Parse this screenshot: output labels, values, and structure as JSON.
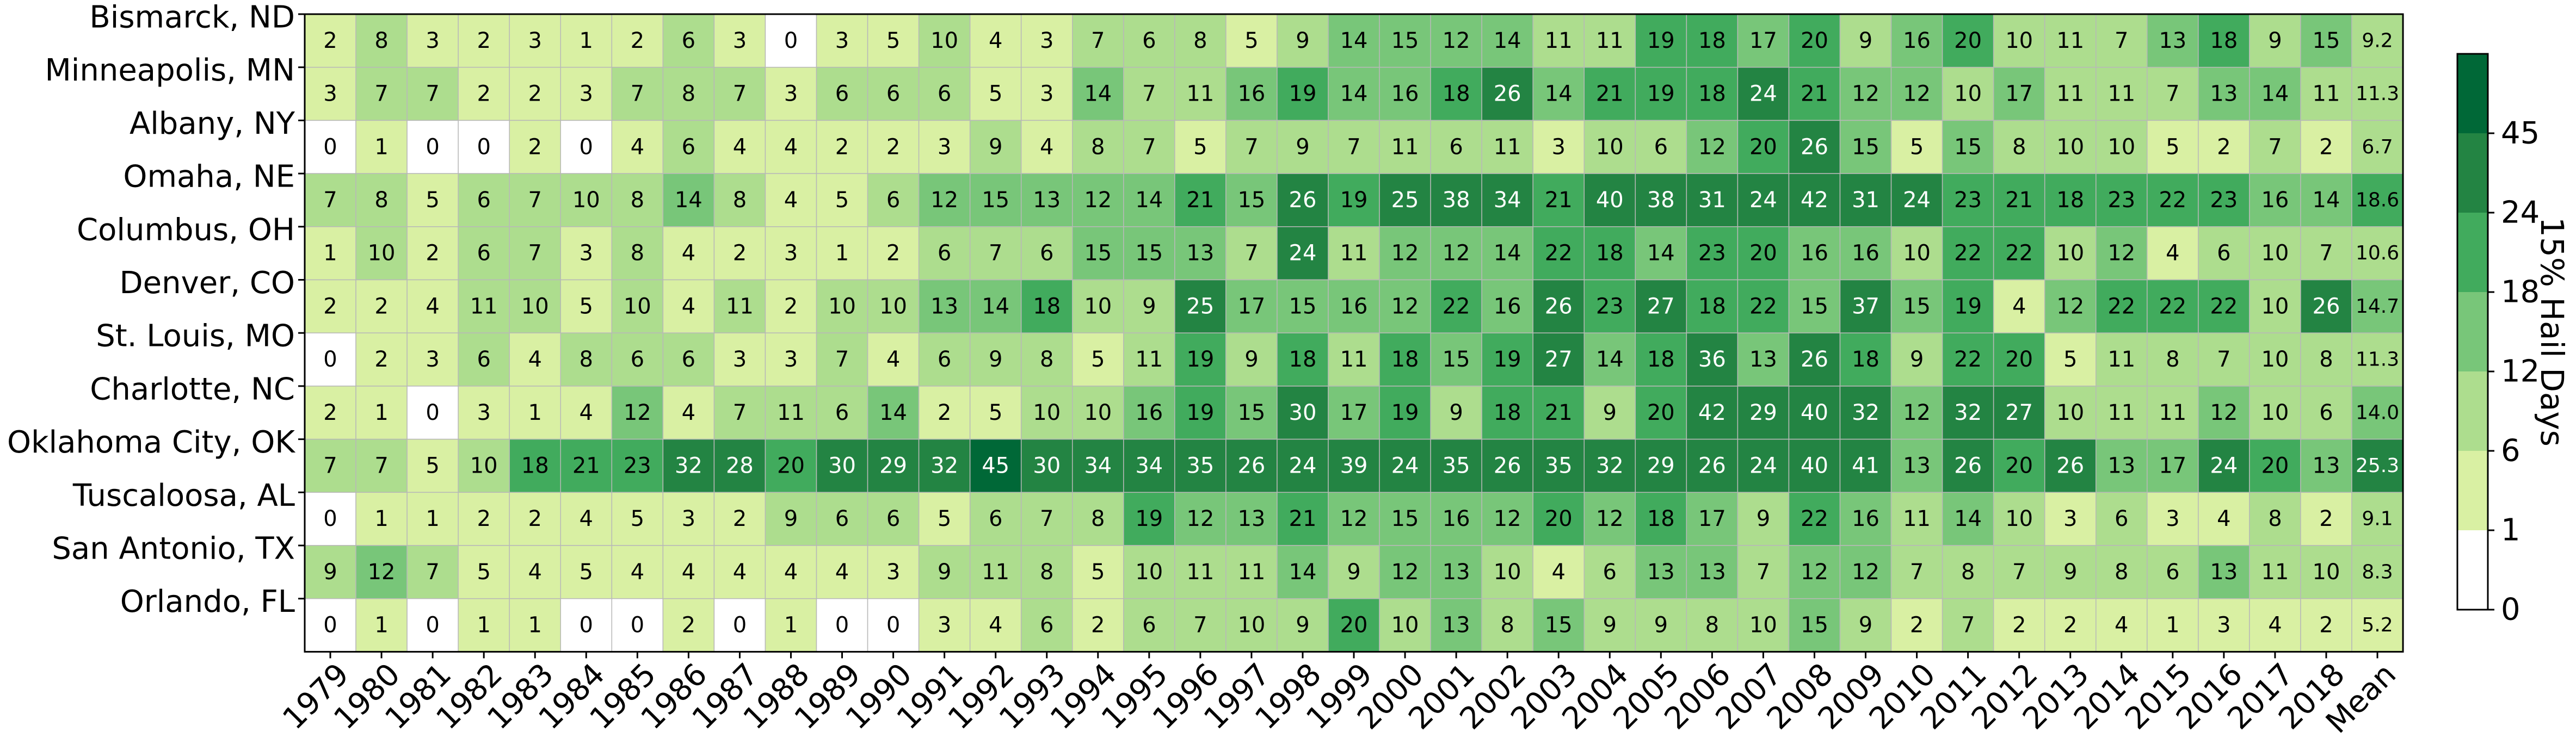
{
  "chart_data": {
    "type": "heatmap",
    "rows": [
      "Bismarck, ND",
      "Minneapolis, MN",
      "Albany, NY",
      "Omaha, NE",
      "Columbus, OH",
      "Denver, CO",
      "St. Louis, MO",
      "Charlotte, NC",
      "Oklahoma City, OK",
      "Tuscaloosa, AL",
      "San Antonio, TX",
      "Orlando, FL"
    ],
    "columns": [
      "1979",
      "1980",
      "1981",
      "1982",
      "1983",
      "1984",
      "1985",
      "1986",
      "1987",
      "1988",
      "1989",
      "1990",
      "1991",
      "1992",
      "1993",
      "1994",
      "1995",
      "1996",
      "1997",
      "1998",
      "1999",
      "2000",
      "2001",
      "2002",
      "2003",
      "2004",
      "2005",
      "2006",
      "2007",
      "2008",
      "2009",
      "2010",
      "2011",
      "2012",
      "2013",
      "2014",
      "2015",
      "2016",
      "2017",
      "2018",
      "Mean"
    ],
    "values": [
      [
        2,
        8,
        3,
        2,
        3,
        1,
        2,
        6,
        3,
        0,
        3,
        5,
        10,
        4,
        3,
        7,
        6,
        8,
        5,
        9,
        14,
        15,
        12,
        14,
        11,
        11,
        19,
        18,
        17,
        20,
        9,
        16,
        20,
        10,
        11,
        7,
        13,
        18,
        9,
        15,
        9.2
      ],
      [
        3,
        7,
        7,
        2,
        2,
        3,
        7,
        8,
        7,
        3,
        6,
        6,
        6,
        5,
        3,
        14,
        7,
        11,
        16,
        19,
        14,
        16,
        18,
        26,
        14,
        21,
        19,
        18,
        24,
        21,
        12,
        12,
        10,
        17,
        11,
        11,
        7,
        13,
        14,
        11,
        11.3
      ],
      [
        0,
        1,
        0,
        0,
        2,
        0,
        4,
        6,
        4,
        4,
        2,
        2,
        3,
        9,
        4,
        8,
        7,
        5,
        7,
        9,
        7,
        11,
        6,
        11,
        3,
        10,
        6,
        12,
        20,
        26,
        15,
        5,
        15,
        8,
        10,
        10,
        5,
        2,
        7,
        2,
        6.7
      ],
      [
        7,
        8,
        5,
        6,
        7,
        10,
        8,
        14,
        8,
        4,
        5,
        6,
        12,
        15,
        13,
        12,
        14,
        21,
        15,
        26,
        19,
        25,
        38,
        34,
        21,
        40,
        38,
        31,
        24,
        42,
        31,
        24,
        23,
        21,
        18,
        23,
        22,
        23,
        16,
        14,
        18.6
      ],
      [
        1,
        10,
        2,
        6,
        7,
        3,
        8,
        4,
        2,
        3,
        1,
        2,
        6,
        7,
        6,
        15,
        15,
        13,
        7,
        24,
        11,
        12,
        12,
        14,
        22,
        18,
        14,
        23,
        20,
        16,
        16,
        10,
        22,
        22,
        10,
        12,
        4,
        6,
        10,
        7,
        10.6
      ],
      [
        2,
        2,
        4,
        11,
        10,
        5,
        10,
        4,
        11,
        2,
        10,
        10,
        13,
        14,
        18,
        10,
        9,
        25,
        17,
        15,
        16,
        12,
        22,
        16,
        26,
        23,
        27,
        18,
        22,
        15,
        37,
        15,
        19,
        4,
        12,
        22,
        22,
        22,
        10,
        26,
        14.7
      ],
      [
        0,
        2,
        3,
        6,
        4,
        8,
        6,
        6,
        3,
        3,
        7,
        4,
        6,
        9,
        8,
        5,
        11,
        19,
        9,
        18,
        11,
        18,
        15,
        19,
        27,
        14,
        18,
        36,
        13,
        26,
        18,
        9,
        22,
        20,
        5,
        11,
        8,
        7,
        10,
        8,
        11.3
      ],
      [
        2,
        1,
        0,
        3,
        1,
        4,
        12,
        4,
        7,
        11,
        6,
        14,
        2,
        5,
        10,
        10,
        16,
        19,
        15,
        30,
        17,
        19,
        9,
        18,
        21,
        9,
        20,
        42,
        29,
        40,
        32,
        12,
        32,
        27,
        10,
        11,
        11,
        12,
        10,
        6,
        14.0
      ],
      [
        7,
        7,
        5,
        10,
        18,
        21,
        23,
        32,
        28,
        20,
        30,
        29,
        32,
        45,
        30,
        34,
        34,
        35,
        26,
        24,
        39,
        24,
        35,
        26,
        35,
        32,
        29,
        26,
        24,
        40,
        41,
        13,
        26,
        20,
        26,
        13,
        17,
        24,
        20,
        13,
        25.3
      ],
      [
        0,
        1,
        1,
        2,
        2,
        4,
        5,
        3,
        2,
        9,
        6,
        6,
        5,
        6,
        7,
        8,
        19,
        12,
        13,
        21,
        12,
        15,
        16,
        12,
        20,
        12,
        18,
        17,
        9,
        22,
        16,
        11,
        14,
        10,
        3,
        6,
        3,
        4,
        8,
        2,
        9.1
      ],
      [
        9,
        12,
        7,
        5,
        4,
        5,
        4,
        4,
        4,
        4,
        4,
        3,
        9,
        11,
        8,
        5,
        10,
        11,
        11,
        14,
        9,
        12,
        13,
        10,
        4,
        6,
        13,
        13,
        7,
        12,
        12,
        7,
        8,
        7,
        9,
        8,
        6,
        13,
        11,
        10,
        8.3
      ],
      [
        0,
        1,
        0,
        1,
        1,
        0,
        0,
        2,
        0,
        1,
        0,
        0,
        3,
        4,
        6,
        2,
        6,
        7,
        10,
        9,
        20,
        10,
        13,
        8,
        15,
        9,
        9,
        8,
        10,
        15,
        9,
        2,
        7,
        2,
        2,
        4,
        1,
        3,
        4,
        2,
        5.2
      ]
    ],
    "colorbar": {
      "label": "15% Hail Days",
      "ticks": [
        "0",
        "1",
        "6",
        "12",
        "18",
        "24",
        "45"
      ],
      "colors": [
        "#ffffff",
        "#d9f0a3",
        "#addd8e",
        "#78c679",
        "#41ab5d",
        "#238443",
        "#006837"
      ]
    }
  }
}
